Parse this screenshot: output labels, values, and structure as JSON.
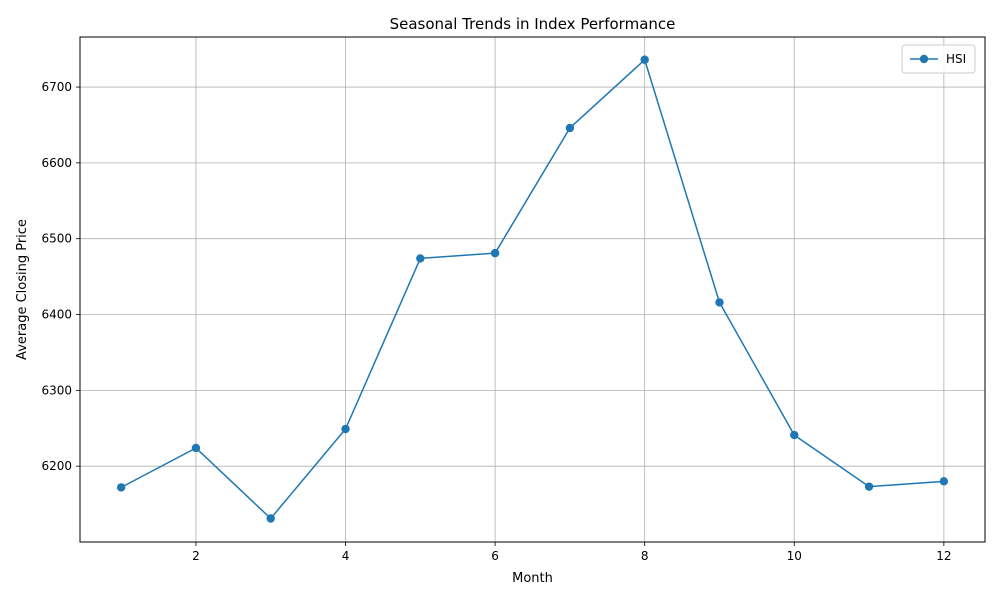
{
  "chart_data": {
    "type": "line",
    "title": "Seasonal Trends in Index Performance",
    "xlabel": "Month",
    "ylabel": "Average Closing Price",
    "x": [
      1,
      2,
      3,
      4,
      5,
      6,
      7,
      8,
      9,
      10,
      11,
      12
    ],
    "series": [
      {
        "name": "HSI",
        "color": "#1f77b4",
        "marker": "circle",
        "values": [
          6172,
          6224,
          6131,
          6249,
          6474,
          6481,
          6646,
          6736,
          6416,
          6241,
          6173,
          6180
        ]
      }
    ],
    "xlim": [
      0.45,
      12.55
    ],
    "ylim": [
      6100,
      6766
    ],
    "xticks": [
      2,
      4,
      6,
      8,
      10,
      12
    ],
    "yticks": [
      6200,
      6300,
      6400,
      6500,
      6600,
      6700
    ],
    "grid": true,
    "legend_position": "top-right"
  }
}
